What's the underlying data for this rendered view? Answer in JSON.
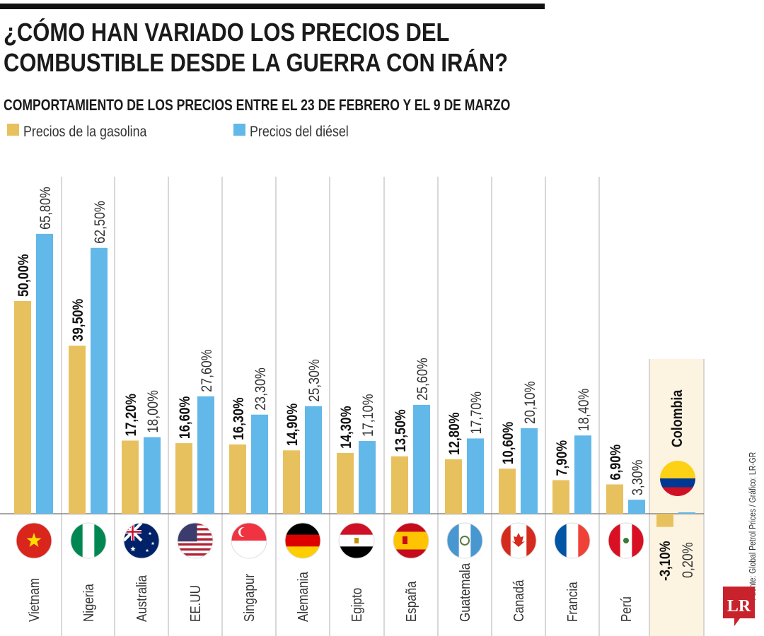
{
  "header": {
    "title_line1": "¿CÓMO HAN VARIADO LOS PRECIOS DEL",
    "title_line2": "COMBUSTIBLE DESDE LA GUERRA CON IRÁN?",
    "subtitle": "COMPORTAMIENTO DE LOS PRECIOS ENTRE EL 23 DE FEBRERO Y EL 9 DE MARZO"
  },
  "footer": {
    "source": "Fuente: Global Petrol Prices / Gráfico: LR-GR",
    "logo": "LR"
  },
  "chart_data": {
    "type": "bar",
    "title": "",
    "xlabel": "",
    "ylabel": "",
    "ylim": [
      -5,
      70
    ],
    "grid": false,
    "legend_position": "top-left",
    "colors": {
      "gasoline": "#e8c15f",
      "diesel": "#62b8e8",
      "highlight_band": "#fdf3e1"
    },
    "categories": [
      "Vietnam",
      "Nigeria",
      "Australia",
      "EE.UU",
      "Singapur",
      "Alemania",
      "Egipto",
      "España",
      "Guatemala",
      "Canadá",
      "Francia",
      "Perú",
      "Colombia"
    ],
    "flags": [
      "flag-vietnam",
      "flag-nigeria",
      "flag-australia",
      "flag-usa",
      "flag-singapore",
      "flag-germany",
      "flag-egypt",
      "flag-spain",
      "flag-guatemala",
      "flag-canada",
      "flag-france",
      "flag-peru",
      "flag-colombia"
    ],
    "highlighted_category": "Colombia",
    "series": [
      {
        "name": "Precios de la gasolina",
        "values": [
          50.0,
          39.5,
          17.2,
          16.6,
          16.3,
          14.9,
          14.3,
          13.5,
          12.8,
          10.6,
          7.9,
          6.9,
          -3.1
        ],
        "labels": [
          "50,00%",
          "39,50%",
          "17,20%",
          "16,60%",
          "16,30%",
          "14,90%",
          "14,30%",
          "13,50%",
          "12,80%",
          "10,60%",
          "7,90%",
          "6,90%",
          "-3,10%"
        ]
      },
      {
        "name": "Precios del diésel",
        "values": [
          65.8,
          62.5,
          18.0,
          27.6,
          23.3,
          25.3,
          17.1,
          25.6,
          17.7,
          20.1,
          18.4,
          3.3,
          0.2
        ],
        "labels": [
          "65,80%",
          "62,50%",
          "18,00%",
          "27,60%",
          "23,30%",
          "25,30%",
          "17,10%",
          "25,60%",
          "17,70%",
          "20,10%",
          "18,40%",
          "3,30%",
          "0,20%"
        ]
      }
    ]
  }
}
